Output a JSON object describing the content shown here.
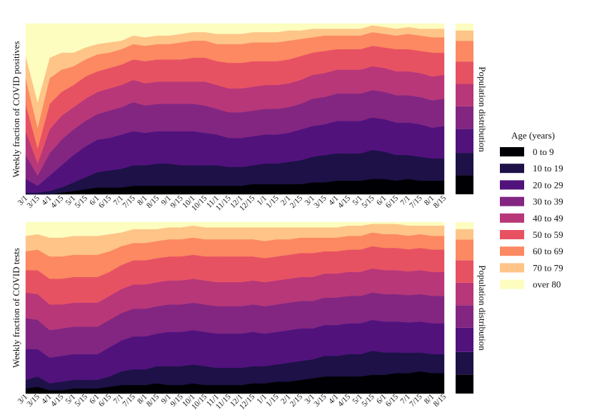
{
  "figure": {
    "x_ticks": [
      "3/1",
      "3/15",
      "4/1",
      "4/15",
      "5/1",
      "5/15",
      "6/1",
      "6/15",
      "7/1",
      "7/15",
      "8/1",
      "8/15",
      "9/1",
      "9/15",
      "10/1",
      "10/15",
      "11/1",
      "11/15",
      "12/1",
      "12/15",
      "1/1",
      "1/15",
      "2/1",
      "2/15",
      "3/1",
      "3/15",
      "4/1",
      "4/15",
      "5/1",
      "5/15",
      "6/1",
      "6/15",
      "7/1",
      "7/15",
      "8/1",
      "8/15"
    ],
    "legend": {
      "title": "Age (years)",
      "items": [
        "0 to 9",
        "10 to 19",
        "20 to 29",
        "30 to 39",
        "40 to 49",
        "50 to 59",
        "60 to 69",
        "70 to 79",
        "over 80"
      ]
    },
    "colors": [
      "#000004",
      "#1d1147",
      "#51127c",
      "#822681",
      "#b73779",
      "#e75263",
      "#fc8961",
      "#fec488",
      "#fcfdbf"
    ]
  },
  "chart_data": [
    {
      "type": "area",
      "stacked": true,
      "normalized": true,
      "ylabel": "Weekly fraction of COVID positives",
      "sidebar_label": "Population distribution",
      "x": [
        "3/1",
        "3/15",
        "4/1",
        "4/15",
        "5/1",
        "5/15",
        "6/1",
        "6/15",
        "7/1",
        "7/15",
        "8/1",
        "8/15",
        "9/1",
        "9/15",
        "10/1",
        "10/15",
        "11/1",
        "11/15",
        "12/1",
        "12/15",
        "1/1",
        "1/15",
        "2/1",
        "2/15",
        "3/1",
        "3/15",
        "4/1",
        "4/15",
        "5/1",
        "5/15",
        "6/1",
        "6/15",
        "7/1",
        "7/15",
        "8/1",
        "8/15"
      ],
      "ylim": [
        0,
        1
      ],
      "series": [
        {
          "name": "0 to 9",
          "values": [
            0.0,
            0.0,
            0.0,
            0.01,
            0.02,
            0.03,
            0.04,
            0.04,
            0.04,
            0.05,
            0.05,
            0.05,
            0.05,
            0.05,
            0.05,
            0.05,
            0.05,
            0.05,
            0.05,
            0.06,
            0.06,
            0.06,
            0.06,
            0.06,
            0.07,
            0.07,
            0.08,
            0.08,
            0.08,
            0.09,
            0.09,
            0.08,
            0.09,
            0.08,
            0.08,
            0.08
          ]
        },
        {
          "name": "10 to 19",
          "values": [
            0.01,
            0.01,
            0.02,
            0.03,
            0.05,
            0.07,
            0.09,
            0.1,
            0.11,
            0.12,
            0.12,
            0.13,
            0.13,
            0.12,
            0.12,
            0.12,
            0.12,
            0.11,
            0.11,
            0.11,
            0.12,
            0.12,
            0.13,
            0.14,
            0.15,
            0.16,
            0.16,
            0.16,
            0.16,
            0.17,
            0.16,
            0.15,
            0.14,
            0.14,
            0.13,
            0.13
          ]
        },
        {
          "name": "20 to 29",
          "values": [
            0.08,
            0.04,
            0.09,
            0.13,
            0.16,
            0.18,
            0.19,
            0.19,
            0.2,
            0.2,
            0.19,
            0.19,
            0.19,
            0.2,
            0.2,
            0.19,
            0.18,
            0.17,
            0.17,
            0.17,
            0.17,
            0.17,
            0.17,
            0.18,
            0.18,
            0.18,
            0.19,
            0.19,
            0.19,
            0.19,
            0.19,
            0.19,
            0.19,
            0.19,
            0.18,
            0.19
          ]
        },
        {
          "name": "30 to 39",
          "values": [
            0.14,
            0.06,
            0.13,
            0.15,
            0.15,
            0.15,
            0.15,
            0.16,
            0.16,
            0.17,
            0.16,
            0.16,
            0.16,
            0.16,
            0.16,
            0.16,
            0.15,
            0.15,
            0.15,
            0.15,
            0.15,
            0.15,
            0.15,
            0.15,
            0.16,
            0.16,
            0.16,
            0.16,
            0.16,
            0.16,
            0.16,
            0.16,
            0.16,
            0.16,
            0.16,
            0.16
          ]
        },
        {
          "name": "40 to 49",
          "values": [
            0.14,
            0.07,
            0.14,
            0.14,
            0.13,
            0.13,
            0.13,
            0.13,
            0.13,
            0.13,
            0.13,
            0.13,
            0.13,
            0.13,
            0.13,
            0.14,
            0.14,
            0.14,
            0.14,
            0.14,
            0.14,
            0.14,
            0.14,
            0.14,
            0.14,
            0.14,
            0.14,
            0.14,
            0.14,
            0.14,
            0.14,
            0.14,
            0.14,
            0.14,
            0.14,
            0.14
          ]
        },
        {
          "name": "50 to 59",
          "values": [
            0.16,
            0.09,
            0.15,
            0.14,
            0.13,
            0.13,
            0.12,
            0.12,
            0.12,
            0.12,
            0.13,
            0.13,
            0.13,
            0.13,
            0.14,
            0.14,
            0.14,
            0.15,
            0.15,
            0.15,
            0.14,
            0.14,
            0.14,
            0.14,
            0.13,
            0.13,
            0.12,
            0.12,
            0.12,
            0.12,
            0.12,
            0.13,
            0.13,
            0.13,
            0.14,
            0.13
          ]
        },
        {
          "name": "60 to 69",
          "values": [
            0.15,
            0.12,
            0.15,
            0.13,
            0.11,
            0.1,
            0.1,
            0.09,
            0.09,
            0.09,
            0.09,
            0.09,
            0.09,
            0.1,
            0.1,
            0.1,
            0.1,
            0.11,
            0.11,
            0.11,
            0.11,
            0.11,
            0.11,
            0.1,
            0.09,
            0.09,
            0.08,
            0.08,
            0.08,
            0.08,
            0.08,
            0.08,
            0.09,
            0.09,
            0.09,
            0.09
          ]
        },
        {
          "name": "70 to 79",
          "values": [
            0.13,
            0.15,
            0.12,
            0.1,
            0.08,
            0.07,
            0.06,
            0.06,
            0.05,
            0.05,
            0.05,
            0.05,
            0.05,
            0.05,
            0.05,
            0.05,
            0.06,
            0.06,
            0.06,
            0.06,
            0.06,
            0.06,
            0.06,
            0.05,
            0.05,
            0.04,
            0.04,
            0.04,
            0.04,
            0.04,
            0.04,
            0.04,
            0.04,
            0.04,
            0.05,
            0.05
          ]
        },
        {
          "name": "over 80",
          "values": [
            0.19,
            0.46,
            0.2,
            0.17,
            0.17,
            0.14,
            0.12,
            0.11,
            0.1,
            0.07,
            0.08,
            0.07,
            0.07,
            0.06,
            0.05,
            0.05,
            0.06,
            0.06,
            0.06,
            0.05,
            0.05,
            0.05,
            0.04,
            0.04,
            0.03,
            0.03,
            0.03,
            0.03,
            0.03,
            0.01,
            0.02,
            0.03,
            0.02,
            0.03,
            0.03,
            0.03
          ]
        }
      ],
      "population_distribution": [
        0.11,
        0.13,
        0.14,
        0.13,
        0.13,
        0.13,
        0.12,
        0.06,
        0.04
      ]
    },
    {
      "type": "area",
      "stacked": true,
      "normalized": true,
      "ylabel": "Weekly fraction of COVID tests",
      "sidebar_label": "Population distribution",
      "x": [
        "3/1",
        "3/15",
        "4/1",
        "4/15",
        "5/1",
        "5/15",
        "6/1",
        "6/15",
        "7/1",
        "7/15",
        "8/1",
        "8/15",
        "9/1",
        "9/15",
        "10/1",
        "10/15",
        "11/1",
        "11/15",
        "12/1",
        "12/15",
        "1/1",
        "1/15",
        "2/1",
        "2/15",
        "3/1",
        "3/15",
        "4/1",
        "4/15",
        "5/1",
        "5/15",
        "6/1",
        "6/15",
        "7/1",
        "7/15",
        "8/1",
        "8/15"
      ],
      "ylim": [
        0,
        1
      ],
      "series": [
        {
          "name": "0 to 9",
          "values": [
            0.03,
            0.04,
            0.02,
            0.02,
            0.03,
            0.03,
            0.03,
            0.04,
            0.05,
            0.05,
            0.05,
            0.06,
            0.05,
            0.05,
            0.06,
            0.05,
            0.05,
            0.05,
            0.05,
            0.06,
            0.06,
            0.07,
            0.07,
            0.08,
            0.09,
            0.1,
            0.1,
            0.1,
            0.1,
            0.11,
            0.11,
            0.12,
            0.12,
            0.13,
            0.12,
            0.12
          ]
        },
        {
          "name": "10 to 19",
          "values": [
            0.05,
            0.06,
            0.04,
            0.05,
            0.05,
            0.05,
            0.05,
            0.06,
            0.08,
            0.09,
            0.09,
            0.1,
            0.11,
            0.11,
            0.11,
            0.11,
            0.1,
            0.1,
            0.1,
            0.1,
            0.1,
            0.1,
            0.11,
            0.11,
            0.11,
            0.12,
            0.12,
            0.13,
            0.13,
            0.14,
            0.13,
            0.12,
            0.12,
            0.11,
            0.11,
            0.11
          ]
        },
        {
          "name": "20 to 29",
          "values": [
            0.18,
            0.16,
            0.15,
            0.15,
            0.15,
            0.15,
            0.15,
            0.17,
            0.18,
            0.19,
            0.19,
            0.19,
            0.2,
            0.2,
            0.2,
            0.2,
            0.2,
            0.2,
            0.2,
            0.2,
            0.19,
            0.19,
            0.19,
            0.19,
            0.18,
            0.18,
            0.18,
            0.18,
            0.18,
            0.18,
            0.18,
            0.18,
            0.18,
            0.18,
            0.18,
            0.18
          ]
        },
        {
          "name": "30 to 39",
          "values": [
            0.18,
            0.17,
            0.16,
            0.16,
            0.16,
            0.16,
            0.16,
            0.16,
            0.16,
            0.16,
            0.16,
            0.16,
            0.16,
            0.16,
            0.16,
            0.16,
            0.16,
            0.16,
            0.16,
            0.16,
            0.16,
            0.16,
            0.16,
            0.16,
            0.16,
            0.16,
            0.16,
            0.16,
            0.16,
            0.16,
            0.16,
            0.16,
            0.16,
            0.16,
            0.16,
            0.16
          ]
        },
        {
          "name": "40 to 49",
          "values": [
            0.15,
            0.15,
            0.15,
            0.14,
            0.14,
            0.14,
            0.14,
            0.14,
            0.14,
            0.14,
            0.14,
            0.14,
            0.14,
            0.14,
            0.14,
            0.14,
            0.14,
            0.14,
            0.14,
            0.14,
            0.14,
            0.14,
            0.14,
            0.14,
            0.14,
            0.14,
            0.14,
            0.14,
            0.14,
            0.14,
            0.14,
            0.14,
            0.14,
            0.14,
            0.14,
            0.14
          ]
        },
        {
          "name": "50 to 59",
          "values": [
            0.13,
            0.14,
            0.15,
            0.15,
            0.15,
            0.15,
            0.15,
            0.14,
            0.14,
            0.14,
            0.14,
            0.14,
            0.14,
            0.14,
            0.14,
            0.14,
            0.15,
            0.15,
            0.15,
            0.14,
            0.14,
            0.14,
            0.14,
            0.14,
            0.14,
            0.13,
            0.13,
            0.13,
            0.13,
            0.13,
            0.13,
            0.13,
            0.13,
            0.13,
            0.13,
            0.13
          ]
        },
        {
          "name": "60 to 69",
          "values": [
            0.11,
            0.12,
            0.13,
            0.13,
            0.13,
            0.13,
            0.13,
            0.12,
            0.11,
            0.1,
            0.1,
            0.1,
            0.1,
            0.1,
            0.1,
            0.1,
            0.1,
            0.1,
            0.1,
            0.1,
            0.1,
            0.1,
            0.09,
            0.09,
            0.09,
            0.08,
            0.08,
            0.08,
            0.08,
            0.08,
            0.08,
            0.08,
            0.08,
            0.08,
            0.08,
            0.08
          ]
        },
        {
          "name": "70 to 79",
          "values": [
            0.09,
            0.09,
            0.11,
            0.11,
            0.11,
            0.11,
            0.11,
            0.1,
            0.08,
            0.08,
            0.08,
            0.07,
            0.07,
            0.07,
            0.07,
            0.07,
            0.07,
            0.07,
            0.07,
            0.07,
            0.08,
            0.07,
            0.07,
            0.06,
            0.06,
            0.06,
            0.06,
            0.06,
            0.06,
            0.05,
            0.06,
            0.06,
            0.06,
            0.05,
            0.06,
            0.06
          ]
        },
        {
          "name": "over 80",
          "values": [
            0.08,
            0.07,
            0.09,
            0.09,
            0.08,
            0.08,
            0.08,
            0.07,
            0.06,
            0.04,
            0.04,
            0.04,
            0.03,
            0.03,
            0.02,
            0.03,
            0.03,
            0.03,
            0.03,
            0.03,
            0.03,
            0.03,
            0.03,
            0.03,
            0.03,
            0.03,
            0.03,
            0.02,
            0.02,
            0.01,
            0.01,
            0.01,
            0.02,
            0.02,
            0.02,
            0.02
          ]
        }
      ],
      "population_distribution": [
        0.11,
        0.13,
        0.14,
        0.13,
        0.13,
        0.13,
        0.12,
        0.06,
        0.04
      ]
    }
  ]
}
